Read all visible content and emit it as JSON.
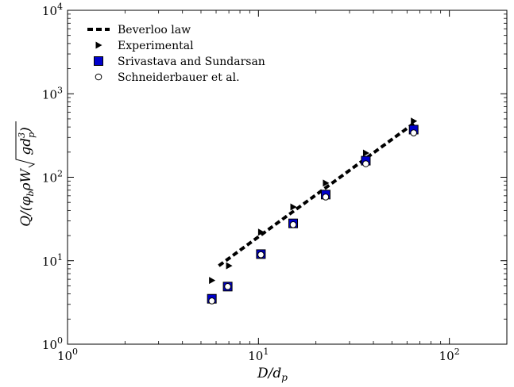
{
  "chart_data": {
    "type": "scatter",
    "xscale": "log",
    "yscale": "log",
    "xlim": [
      1,
      200
    ],
    "ylim": [
      1,
      10000
    ],
    "x_ticks": [
      1,
      10,
      100
    ],
    "x_tick_labels": [
      "10^0",
      "10^1",
      "10^2"
    ],
    "y_ticks": [
      1,
      10,
      100,
      1000,
      10000
    ],
    "y_tick_labels": [
      "10^0",
      "10^1",
      "10^2",
      "10^3",
      "10^4"
    ],
    "xlabel": "D/d_p",
    "ylabel": "Q/(φ_b ρ W √(g d_p^3))",
    "grid": false,
    "legend_position": "top-left",
    "series": [
      {
        "name": "Beverloo law",
        "style": "dashed-line",
        "color": "#000000",
        "x": [
          6.2,
          65
        ],
        "y": [
          8.7,
          440
        ]
      },
      {
        "name": "Experimental",
        "style": "right-triangle",
        "color": "#000000",
        "x": [
          5.7,
          7.0,
          10.3,
          15.2,
          22.5,
          36.5,
          65
        ],
        "y": [
          5.8,
          8.7,
          22,
          44,
          85,
          195,
          470
        ]
      },
      {
        "name": "Srivastava and Sundarsan",
        "style": "square",
        "color": "#0000cc",
        "x": [
          5.7,
          6.9,
          10.3,
          15.2,
          22.5,
          36.5,
          65
        ],
        "y": [
          3.5,
          4.9,
          12,
          28,
          62,
          158,
          372
        ]
      },
      {
        "name": "Schneiderbauer et al.",
        "style": "open-circle",
        "color": "#000000",
        "x": [
          5.7,
          6.9,
          10.3,
          15.2,
          22.5,
          36.5,
          65
        ],
        "y": [
          3.3,
          4.9,
          11.8,
          27,
          58,
          145,
          340
        ]
      }
    ]
  }
}
